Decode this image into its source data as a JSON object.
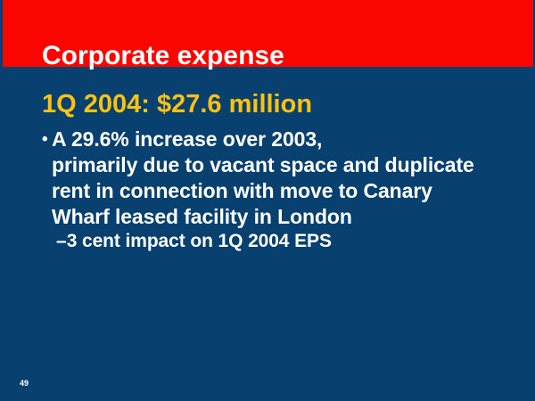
{
  "slide": {
    "title": "Corporate expense",
    "heading": "1Q 2004: $27.6 million",
    "bullet": {
      "marker": "•",
      "text": "A 29.6% increase over 2003,\nprimarily due to vacant space and duplicate\nrent in connection with move to Canary\nWharf leased facility in London"
    },
    "sub_bullet": {
      "marker": "–",
      "text": "3 cent impact on 1Q 2004 EPS"
    },
    "page_number": "49",
    "colors": {
      "band_red": "#FA0500",
      "background_navy": "#08406F",
      "heading_gold": "#FCC211",
      "text_white": "#FFFFFF"
    }
  }
}
